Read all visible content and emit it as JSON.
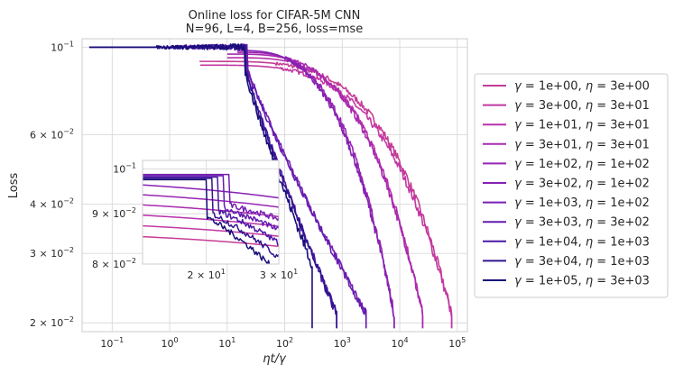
{
  "chart_data": {
    "type": "line",
    "title": "Online loss for CIFAR-5M CNN",
    "subtitle": "N=96, L=4, B=256, loss=mse",
    "xlabel": "ηt/γ",
    "ylabel": "Loss",
    "xscale": "log",
    "yscale": "log",
    "xlim": [
      0.03,
      150000
    ],
    "ylim": [
      0.019,
      0.105
    ],
    "x_ticks": [
      {
        "value": 0.1,
        "base": "10",
        "exp": "−1"
      },
      {
        "value": 1,
        "base": "10",
        "exp": "0"
      },
      {
        "value": 10,
        "base": "10",
        "exp": "1"
      },
      {
        "value": 100,
        "base": "10",
        "exp": "2"
      },
      {
        "value": 1000,
        "base": "10",
        "exp": "3"
      },
      {
        "value": 10000,
        "base": "10",
        "exp": "4"
      },
      {
        "value": 100000,
        "base": "10",
        "exp": "5"
      }
    ],
    "y_ticks": [
      {
        "value": 0.1,
        "mant": "10",
        "exp": "−1"
      },
      {
        "value": 0.06,
        "mant": "6 × 10",
        "exp": "−2"
      },
      {
        "value": 0.04,
        "mant": "4 × 10",
        "exp": "−2"
      },
      {
        "value": 0.03,
        "mant": "3 × 10",
        "exp": "−2"
      },
      {
        "value": 0.02,
        "mant": "2 × 10",
        "exp": "−2"
      }
    ],
    "legend_position": "right",
    "series": [
      {
        "name": "γ = 1e+00, η = 3e+00",
        "gamma": "1e+00",
        "eta": "3e+00",
        "color": "#c53d94",
        "x_start": 3.3,
        "x_end": 80000,
        "y_start": 0.092,
        "y_end": 0.021
      },
      {
        "name": "γ = 3e+00, η = 3e+01",
        "gamma": "3e+00",
        "eta": "3e+01",
        "color": "#c237a3",
        "x_start": 3.4,
        "x_end": 80000,
        "y_start": 0.09,
        "y_end": 0.021
      },
      {
        "name": "γ = 1e+01, η = 3e+01",
        "gamma": "1e+01",
        "eta": "3e+01",
        "color": "#b730ab",
        "x_start": 10,
        "x_end": 25000,
        "y_start": 0.094,
        "y_end": 0.021
      },
      {
        "name": "γ = 3e+01, η = 3e+01",
        "gamma": "3e+01",
        "eta": "3e+01",
        "color": "#a82aaf",
        "x_start": 10,
        "x_end": 25000,
        "y_start": 0.096,
        "y_end": 0.021
      },
      {
        "name": "γ = 1e+02, η = 1e+02",
        "gamma": "1e+02",
        "eta": "1e+02",
        "color": "#9725b2",
        "x_start": 15,
        "x_end": 8000,
        "y_start": 0.097,
        "y_end": 0.021
      },
      {
        "name": "γ = 3e+02, η = 1e+02",
        "gamma": "3e+02",
        "eta": "1e+02",
        "color": "#8722b3",
        "x_start": 15,
        "x_end": 8000,
        "y_start": 0.098,
        "y_end": 0.021
      },
      {
        "name": "γ = 1e+03, η = 1e+02",
        "gamma": "1e+03",
        "eta": "1e+02",
        "color": "#761fb2",
        "x_start": 0.04,
        "x_end": 2600,
        "y_start": 0.1,
        "y_end": 0.021
      },
      {
        "name": "γ = 3e+03, η = 3e+02",
        "gamma": "3e+03",
        "eta": "3e+02",
        "color": "#651caf",
        "x_start": 0.04,
        "x_end": 2600,
        "y_start": 0.1,
        "y_end": 0.021
      },
      {
        "name": "γ = 1e+04, η = 1e+03",
        "gamma": "1e+04",
        "eta": "1e+03",
        "color": "#4c18a6",
        "x_start": 0.04,
        "x_end": 800,
        "y_start": 0.1,
        "y_end": 0.021
      },
      {
        "name": "γ = 3e+04, η = 1e+03",
        "gamma": "3e+04",
        "eta": "1e+03",
        "color": "#32148f",
        "x_start": 0.04,
        "x_end": 800,
        "y_start": 0.1,
        "y_end": 0.021
      },
      {
        "name": "γ = 1e+05, η = 3e+03",
        "gamma": "1e+05",
        "eta": "3e+03",
        "color": "#170e79",
        "x_start": 0.04,
        "x_end": 300,
        "y_start": 0.1,
        "y_end": 0.028
      }
    ],
    "inset": {
      "xlim": [
        14,
        30
      ],
      "ylim": [
        0.08,
        0.102
      ],
      "x_ticks": [
        {
          "value": 20,
          "mant": "2 × 10",
          "exp": "1"
        },
        {
          "value": 30,
          "mant": "3 × 10",
          "exp": "1"
        }
      ],
      "y_ticks": [
        {
          "value": 0.1,
          "mant": "10",
          "exp": "−1"
        },
        {
          "value": 0.09,
          "mant": "9 × 10",
          "exp": "−2"
        },
        {
          "value": 0.08,
          "mant": "8 × 10",
          "exp": "−2"
        }
      ]
    }
  }
}
